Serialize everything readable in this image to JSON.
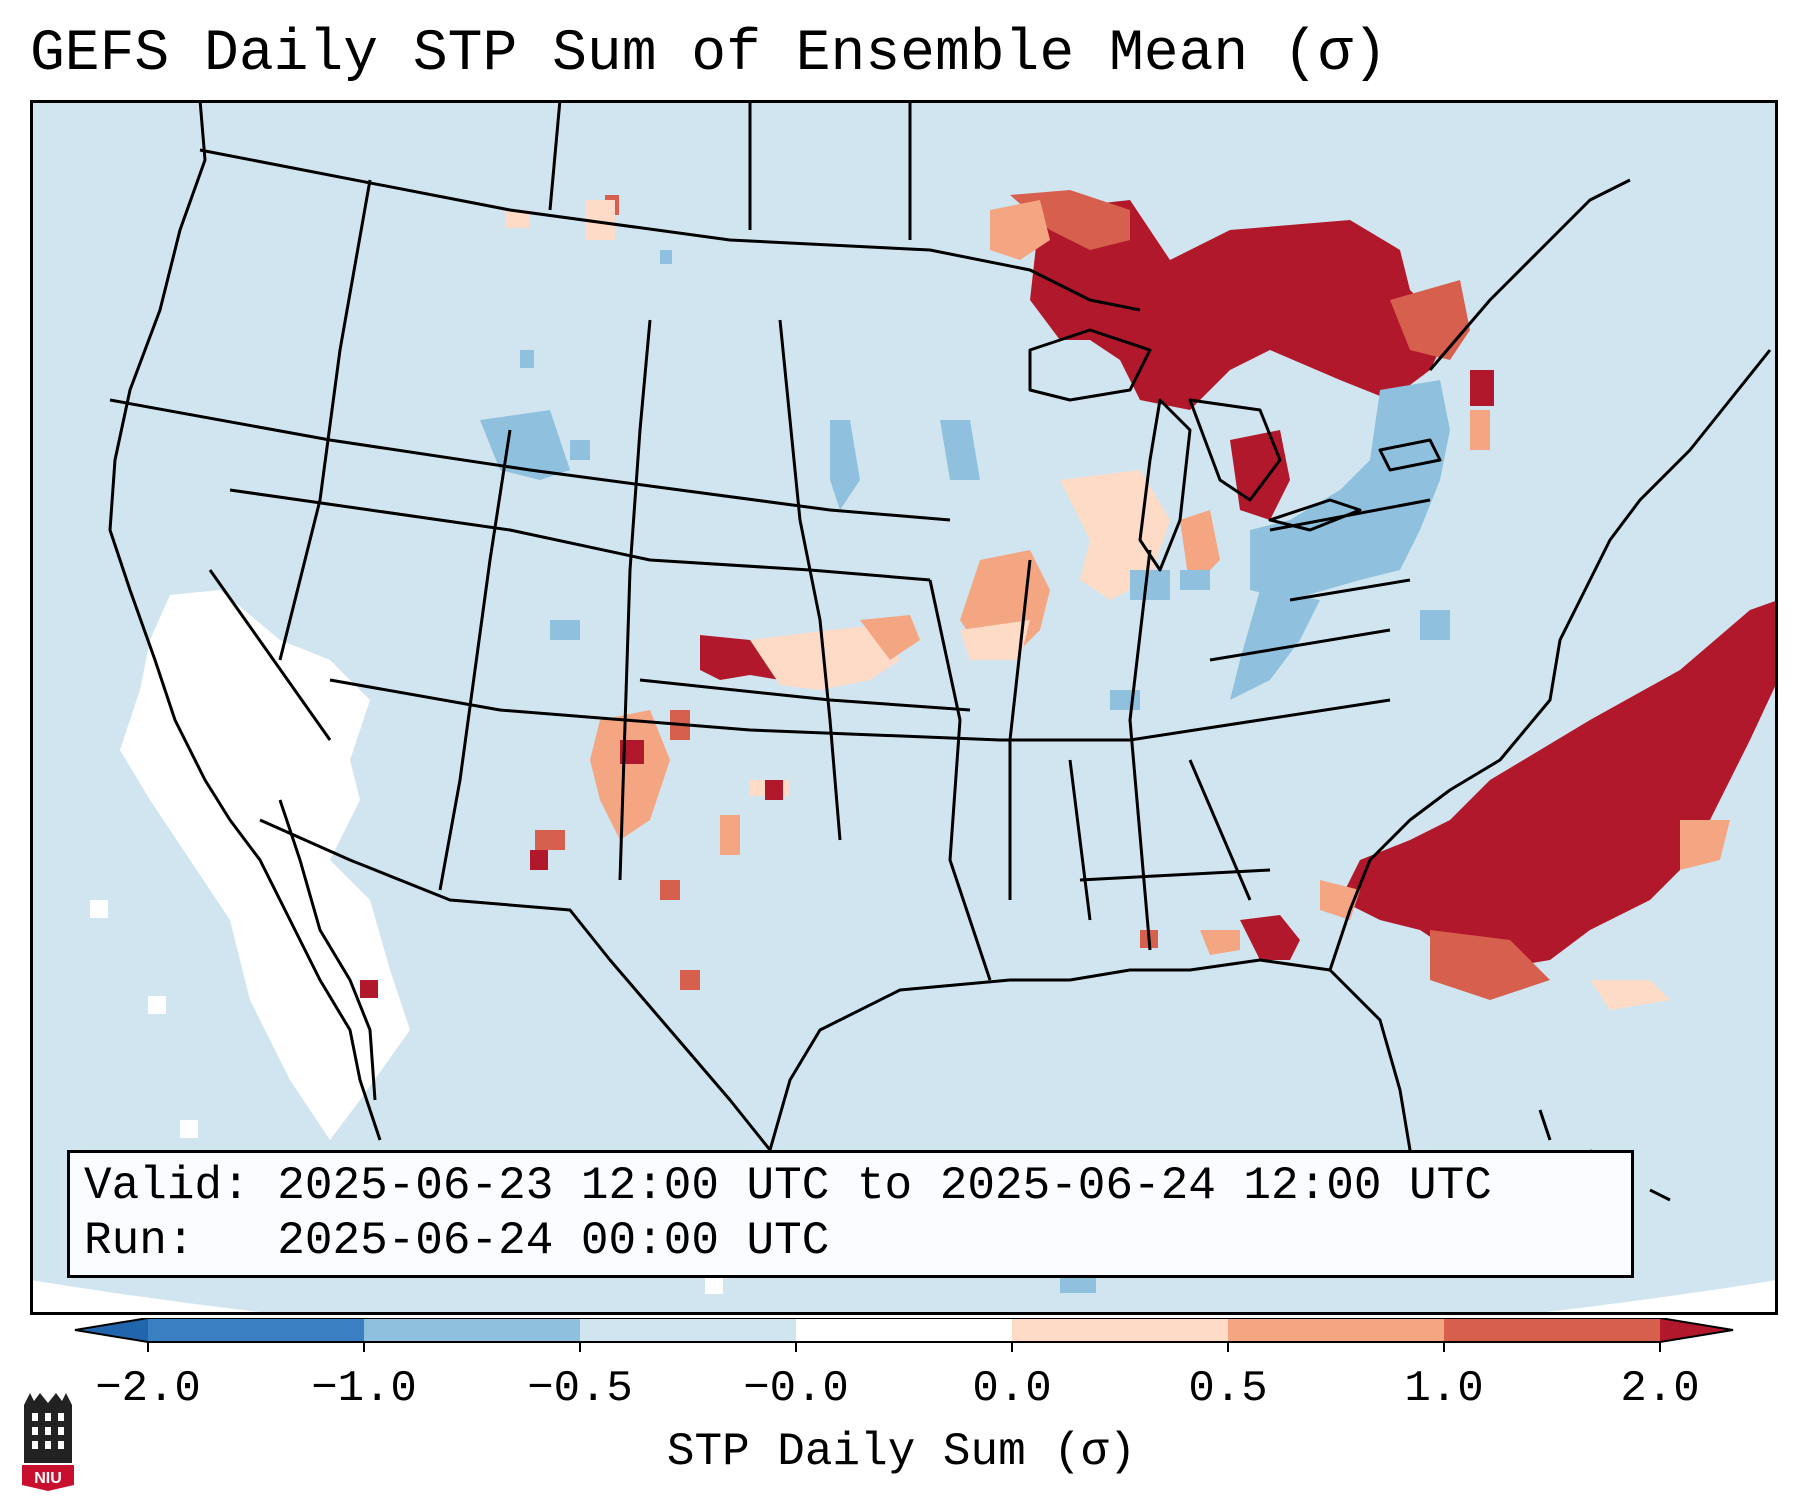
{
  "title": "GEFS Daily STP Sum of Ensemble Mean (σ)",
  "info": {
    "valid_label": "Valid:",
    "valid_value": "2025-06-23 12:00 UTC to 2025-06-24 12:00 UTC",
    "run_label": "Run:",
    "run_value": "2025-06-24 00:00 UTC"
  },
  "colorbar": {
    "label": "STP Daily Sum (σ)",
    "ticks": [
      "−2.0",
      "−1.0",
      "−0.5",
      "−0.0",
      "0.0",
      "0.5",
      "1.0",
      "2.0"
    ],
    "colors": [
      "#3a7fc1",
      "#8fc1de",
      "#d1e5f0",
      "#fddbc7",
      "#f4a582",
      "#d6604d",
      "#b2182b"
    ],
    "extend_low_color": "#2166ac",
    "extend_high_color": "#b2182b"
  },
  "map": {
    "background": "#d1e5f0",
    "outside_domain": "#ffffff",
    "legend_icon": "niu-logo-icon",
    "logo_text": "NIU"
  }
}
